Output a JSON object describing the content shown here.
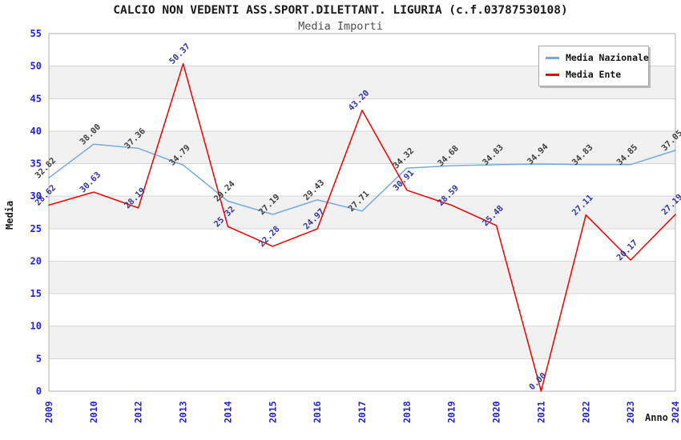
{
  "header": {
    "title": "CALCIO NON VEDENTI ASS.SPORT.DILETTANT. LIGURIA (c.f.03787530108)",
    "subtitle": "Media Importi"
  },
  "legend": {
    "items": [
      {
        "label": "Media Nazionale",
        "color": "#74AADC"
      },
      {
        "label": "Media Ente",
        "color": "#EE0000"
      }
    ]
  },
  "chart_data": {
    "type": "line",
    "title": "CALCIO NON VEDENTI ASS.SPORT.DILETTANT. LIGURIA (c.f.03787530108)",
    "subtitle": "Media Importi",
    "xlabel": "Anno",
    "ylabel": "Media",
    "categories": [
      "2009",
      "2010",
      "2012",
      "2013",
      "2014",
      "2015",
      "2016",
      "2017",
      "2018",
      "2019",
      "2020",
      "2021",
      "2022",
      "2023",
      "2024"
    ],
    "series": [
      {
        "name": "Media Nazionale",
        "color": "#74AADC",
        "label_color": "#404040",
        "values": [
          32.82,
          38.0,
          37.36,
          34.79,
          29.24,
          27.19,
          29.43,
          27.71,
          34.32,
          34.68,
          34.83,
          34.94,
          34.83,
          34.85,
          37.05
        ]
      },
      {
        "name": "Media Ente",
        "color": "#EE0000",
        "label_color": "#3333A6",
        "values": [
          28.62,
          30.63,
          28.19,
          50.37,
          25.32,
          22.28,
          24.97,
          43.2,
          30.91,
          28.59,
          25.48,
          0.0,
          27.11,
          20.17,
          27.19
        ]
      }
    ],
    "ylim": [
      0,
      55
    ],
    "ytick_step": 5,
    "grid": "horizontal",
    "band_fill": "#F1F1F1",
    "gridline_color": "#D6D6D6",
    "plot_border_color": "#B0B0B0",
    "tick_label_color": "#2323CF",
    "legend_position": "top-right"
  }
}
